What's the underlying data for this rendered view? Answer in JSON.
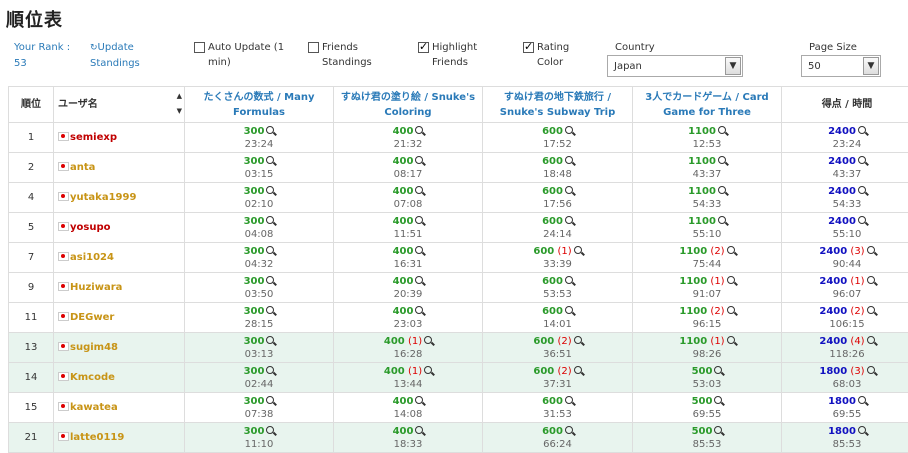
{
  "page": {
    "title": "順位表"
  },
  "controls": {
    "your_rank_label": "Your Rank :",
    "your_rank_value": "53",
    "update_label": "Update Standings",
    "auto_update_label": "Auto Update (1 min)",
    "friends_label": "Friends Standings",
    "highlight_label": "Highlight Friends",
    "rating_label": "Rating Color",
    "country_label": "Country",
    "country_value": "Japan",
    "page_size_label": "Page Size",
    "page_size_value": "50"
  },
  "table": {
    "headers": {
      "rank": "順位",
      "user": "ユーザ名",
      "p1": "たくさんの数式 / Many Formulas",
      "p2": "すぬけ君の塗り絵 / Snuke's Coloring",
      "p3": "すぬけ君の地下鉄旅行 / Snuke's Subway Trip",
      "p4": "3人でカードゲーム / Card Game for Three",
      "total": "得点 / 時間"
    },
    "rows": [
      {
        "rank": "1",
        "user": "semiexp",
        "ucolor": "#c00000",
        "hl": false,
        "p": [
          {
            "s": "300",
            "pen": "",
            "t": "23:24"
          },
          {
            "s": "400",
            "pen": "",
            "t": "21:32"
          },
          {
            "s": "600",
            "pen": "",
            "t": "17:52"
          },
          {
            "s": "1100",
            "pen": "",
            "t": "12:53"
          }
        ],
        "total": {
          "s": "2400",
          "pen": "",
          "t": "23:24"
        }
      },
      {
        "rank": "2",
        "user": "anta",
        "ucolor": "#c89416",
        "hl": false,
        "p": [
          {
            "s": "300",
            "pen": "",
            "t": "03:15"
          },
          {
            "s": "400",
            "pen": "",
            "t": "08:17"
          },
          {
            "s": "600",
            "pen": "",
            "t": "18:48"
          },
          {
            "s": "1100",
            "pen": "",
            "t": "43:37"
          }
        ],
        "total": {
          "s": "2400",
          "pen": "",
          "t": "43:37"
        }
      },
      {
        "rank": "4",
        "user": "yutaka1999",
        "ucolor": "#c89416",
        "hl": false,
        "p": [
          {
            "s": "300",
            "pen": "",
            "t": "02:10"
          },
          {
            "s": "400",
            "pen": "",
            "t": "07:08"
          },
          {
            "s": "600",
            "pen": "",
            "t": "17:56"
          },
          {
            "s": "1100",
            "pen": "",
            "t": "54:33"
          }
        ],
        "total": {
          "s": "2400",
          "pen": "",
          "t": "54:33"
        }
      },
      {
        "rank": "5",
        "user": "yosupo",
        "ucolor": "#c00000",
        "hl": false,
        "p": [
          {
            "s": "300",
            "pen": "",
            "t": "04:08"
          },
          {
            "s": "400",
            "pen": "",
            "t": "11:51"
          },
          {
            "s": "600",
            "pen": "",
            "t": "24:14"
          },
          {
            "s": "1100",
            "pen": "",
            "t": "55:10"
          }
        ],
        "total": {
          "s": "2400",
          "pen": "",
          "t": "55:10"
        }
      },
      {
        "rank": "7",
        "user": "asi1024",
        "ucolor": "#c89416",
        "hl": false,
        "p": [
          {
            "s": "300",
            "pen": "",
            "t": "04:32"
          },
          {
            "s": "400",
            "pen": "",
            "t": "16:31"
          },
          {
            "s": "600",
            "pen": "(1)",
            "t": "33:39"
          },
          {
            "s": "1100",
            "pen": "(2)",
            "t": "75:44"
          }
        ],
        "total": {
          "s": "2400",
          "pen": "(3)",
          "t": "90:44"
        }
      },
      {
        "rank": "9",
        "user": "Huziwara",
        "ucolor": "#c89416",
        "hl": false,
        "p": [
          {
            "s": "300",
            "pen": "",
            "t": "03:50"
          },
          {
            "s": "400",
            "pen": "",
            "t": "20:39"
          },
          {
            "s": "600",
            "pen": "",
            "t": "53:53"
          },
          {
            "s": "1100",
            "pen": "(1)",
            "t": "91:07"
          }
        ],
        "total": {
          "s": "2400",
          "pen": "(1)",
          "t": "96:07"
        }
      },
      {
        "rank": "11",
        "user": "DEGwer",
        "ucolor": "#c89416",
        "hl": false,
        "p": [
          {
            "s": "300",
            "pen": "",
            "t": "28:15"
          },
          {
            "s": "400",
            "pen": "",
            "t": "23:03"
          },
          {
            "s": "600",
            "pen": "",
            "t": "14:01"
          },
          {
            "s": "1100",
            "pen": "(2)",
            "t": "96:15"
          }
        ],
        "total": {
          "s": "2400",
          "pen": "(2)",
          "t": "106:15"
        }
      },
      {
        "rank": "13",
        "user": "sugim48",
        "ucolor": "#c89416",
        "hl": true,
        "p": [
          {
            "s": "300",
            "pen": "",
            "t": "03:13"
          },
          {
            "s": "400",
            "pen": "(1)",
            "t": "16:28"
          },
          {
            "s": "600",
            "pen": "(2)",
            "t": "36:51"
          },
          {
            "s": "1100",
            "pen": "(1)",
            "t": "98:26"
          }
        ],
        "total": {
          "s": "2400",
          "pen": "(4)",
          "t": "118:26"
        }
      },
      {
        "rank": "14",
        "user": "Kmcode",
        "ucolor": "#c89416",
        "hl": true,
        "p": [
          {
            "s": "300",
            "pen": "",
            "t": "02:44"
          },
          {
            "s": "400",
            "pen": "(1)",
            "t": "13:44"
          },
          {
            "s": "600",
            "pen": "(2)",
            "t": "37:31"
          },
          {
            "s": "500",
            "pen": "",
            "t": "53:03"
          }
        ],
        "total": {
          "s": "1800",
          "pen": "(3)",
          "t": "68:03"
        }
      },
      {
        "rank": "15",
        "user": "kawatea",
        "ucolor": "#c89416",
        "hl": false,
        "p": [
          {
            "s": "300",
            "pen": "",
            "t": "07:38"
          },
          {
            "s": "400",
            "pen": "",
            "t": "14:08"
          },
          {
            "s": "600",
            "pen": "",
            "t": "31:53"
          },
          {
            "s": "500",
            "pen": "",
            "t": "69:55"
          }
        ],
        "total": {
          "s": "1800",
          "pen": "",
          "t": "69:55"
        }
      },
      {
        "rank": "21",
        "user": "latte0119",
        "ucolor": "#c89416",
        "hl": true,
        "p": [
          {
            "s": "300",
            "pen": "",
            "t": "11:10"
          },
          {
            "s": "400",
            "pen": "",
            "t": "18:33"
          },
          {
            "s": "600",
            "pen": "",
            "t": "66:24"
          },
          {
            "s": "500",
            "pen": "",
            "t": "85:53"
          }
        ],
        "total": {
          "s": "1800",
          "pen": "",
          "t": "85:53"
        }
      }
    ]
  },
  "colors": {
    "accepted": "#2a9a2a",
    "total": "#1010c0",
    "penalty": "#dd0000",
    "link": "#2a7ab8",
    "friend_highlight": "#e8f4ee"
  },
  "icons": {
    "update": "refresh-icon",
    "problem_detail": "magnifier-icon",
    "flag": "japan-flag-icon",
    "checkbox": "checkbox-icon"
  }
}
